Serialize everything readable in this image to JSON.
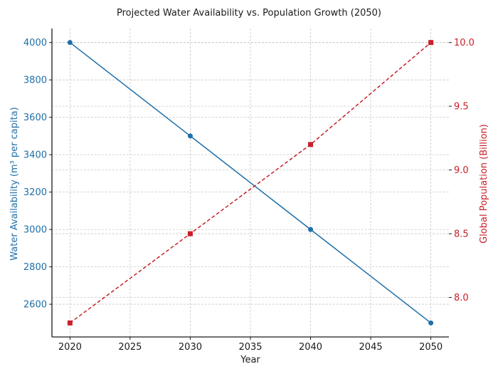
{
  "chart_data": {
    "type": "line",
    "title": "Projected Water Availability vs. Population Growth (2050)",
    "xlabel": "Year",
    "ylabel_left": "Water Availability (m³ per capita)",
    "ylabel_right": "Global Population (Billion)",
    "x": [
      2020,
      2030,
      2040,
      2050
    ],
    "xlim": [
      2018.5,
      2051.5
    ],
    "x_ticks": [
      2020,
      2025,
      2030,
      2035,
      2040,
      2045,
      2050
    ],
    "x_tick_labels": [
      "2020",
      "2025",
      "2030",
      "2035",
      "2040",
      "2045",
      "2050"
    ],
    "grid": true,
    "series": [
      {
        "name": "Water Availability",
        "axis": "left",
        "values": [
          4000,
          3500,
          3000,
          2500
        ],
        "color": "#1f6fa8",
        "line_style": "solid",
        "marker": "circle"
      },
      {
        "name": "Global Population",
        "axis": "right",
        "values": [
          7.8,
          8.5,
          9.2,
          10.0
        ],
        "color": "#c8202a",
        "line_style": "dashed",
        "marker": "square"
      }
    ],
    "y_left": {
      "ylim": [
        2425,
        4075
      ],
      "ticks": [
        2600,
        2800,
        3000,
        3200,
        3400,
        3600,
        3800,
        4000
      ],
      "tick_labels": [
        "2600",
        "2800",
        "3000",
        "3200",
        "3400",
        "3600",
        "3800",
        "4000"
      ],
      "color": "#1f6fa8"
    },
    "y_right": {
      "ylim": [
        7.69,
        10.11
      ],
      "ticks": [
        8.0,
        8.5,
        9.0,
        9.5,
        10.0
      ],
      "tick_labels": [
        "8.0",
        "8.5",
        "9.0",
        "9.5",
        "10.0"
      ],
      "color": "#c8202a"
    }
  }
}
